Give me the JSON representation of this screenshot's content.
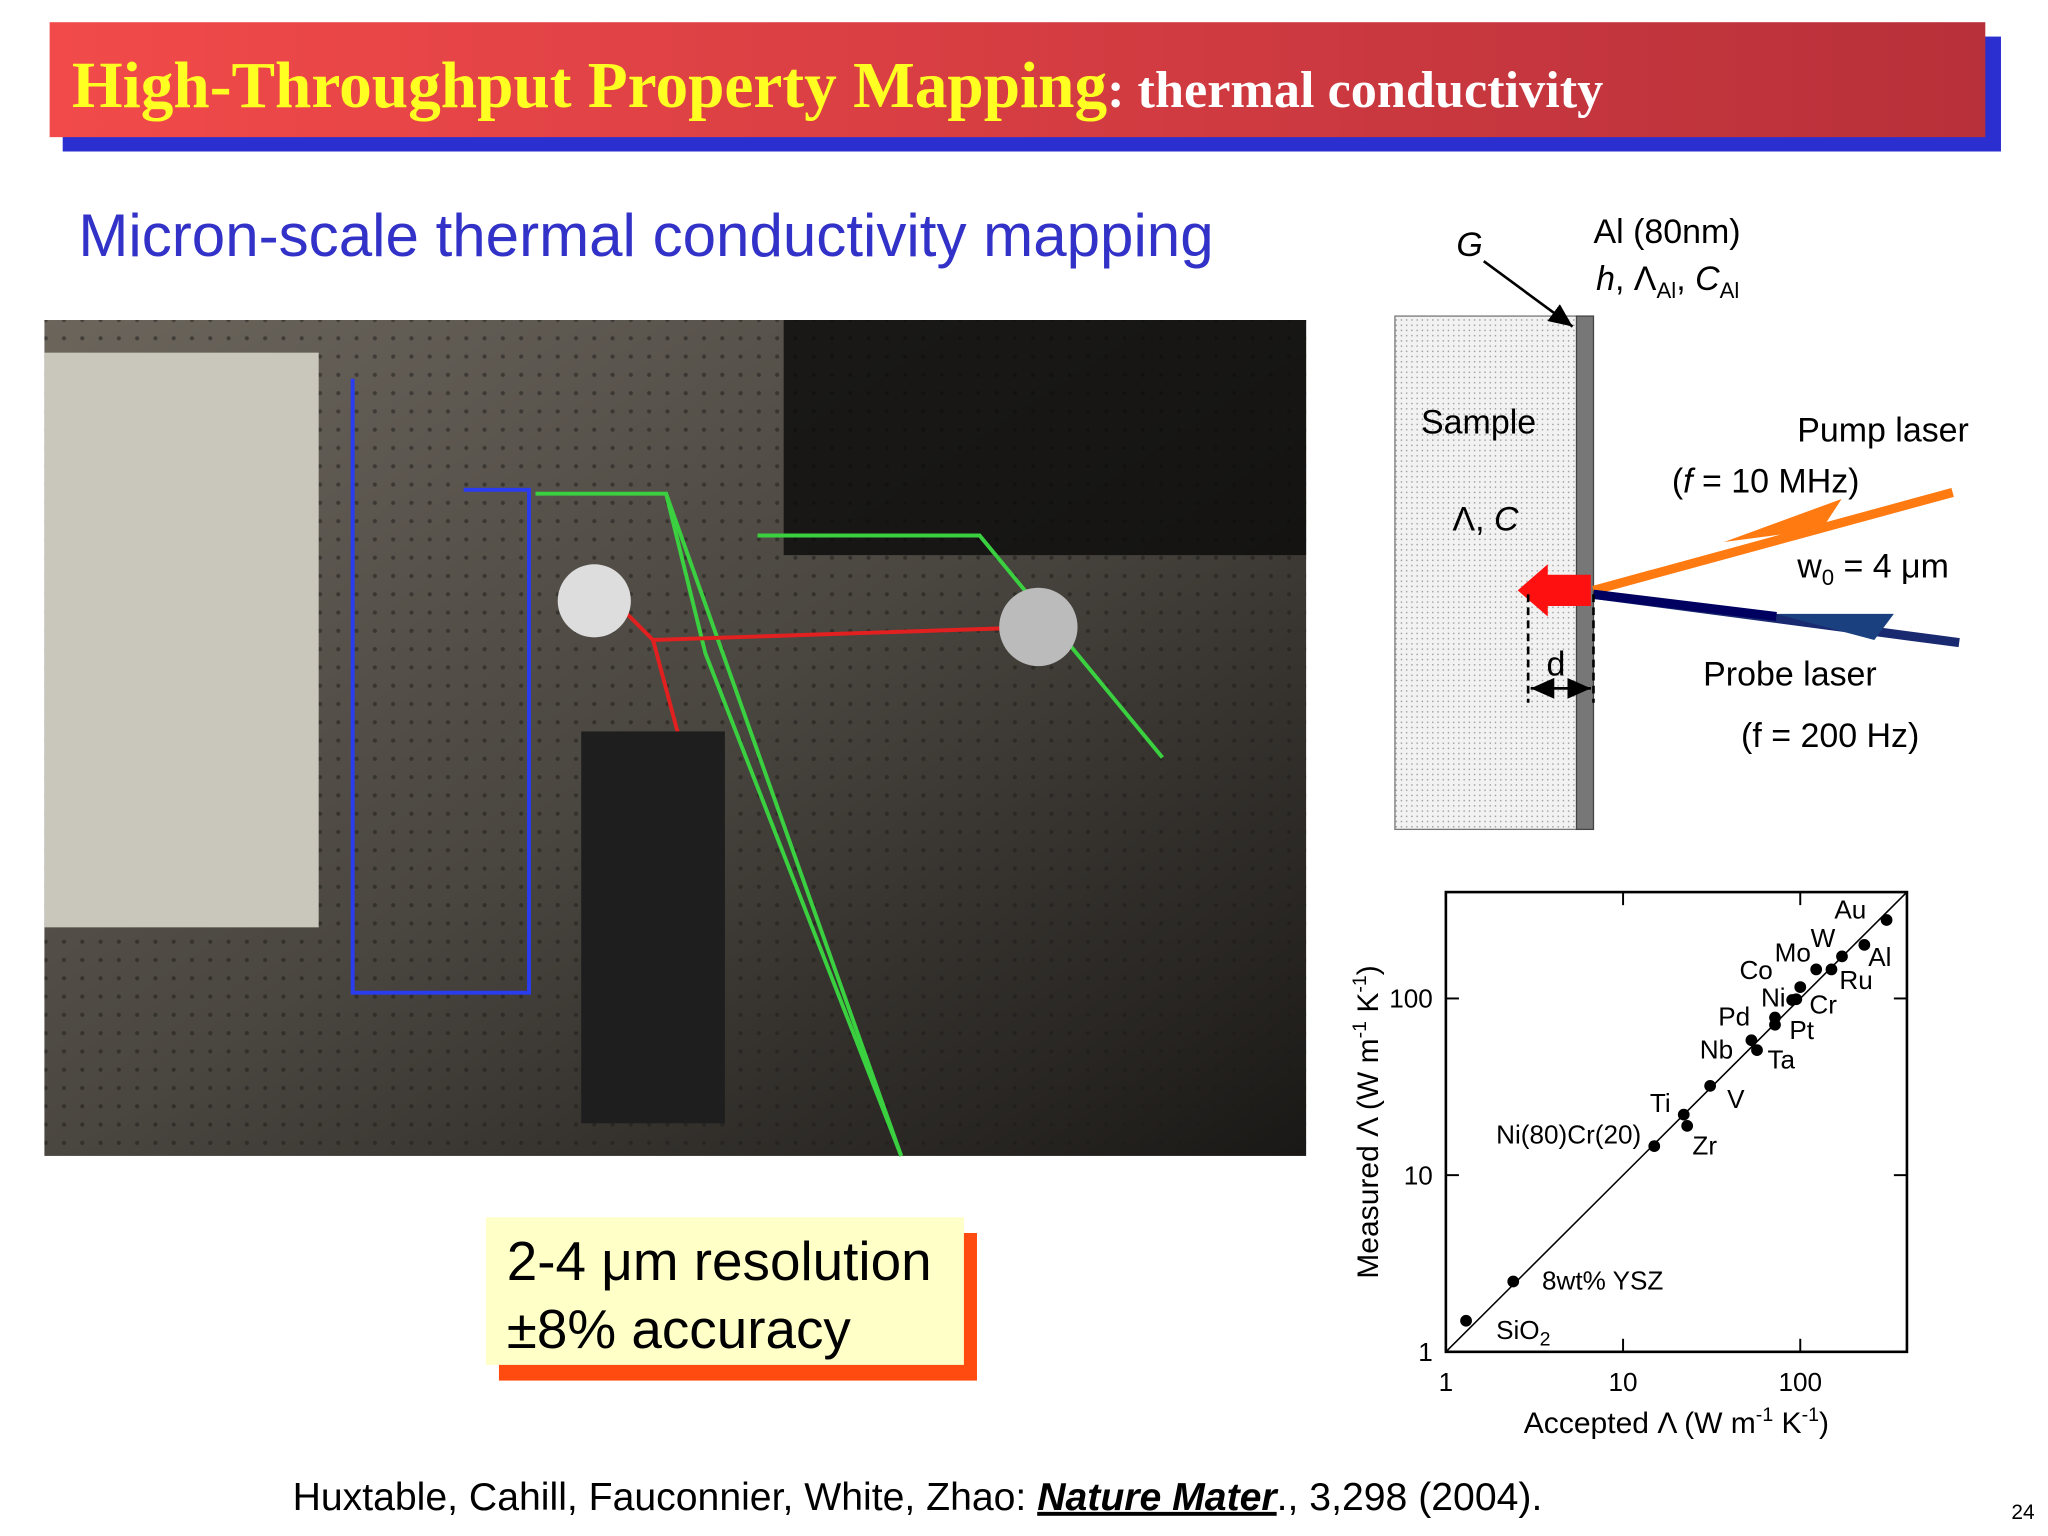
{
  "header": {
    "title": [
      "High-Throughput Property Mapping",
      ": thermal conductivity"
    ]
  },
  "subtitle": "Micron-scale thermal conductivity mapping",
  "highlight": [
    "2-4 μm resolution",
    "±8% accuracy"
  ],
  "citation": [
    "Huxtable, Cahill, Fauconnier, White, Zhao: ",
    "Nature Mater",
    ".,  3,298 (2004)."
  ],
  "page_number": "24",
  "diagram": {
    "interface": "G",
    "layer": "Al (80nm)",
    "layer_params": [
      "h",
      ", Λ",
      "Al",
      ", ",
      "C",
      "Al"
    ],
    "sample": "Sample",
    "sample_params": [
      "Λ, ",
      "C"
    ],
    "pump": "Pump laser",
    "pump_freq": [
      "(",
      "f",
      " = 10 MHz)"
    ],
    "spot": [
      "w",
      "0",
      " = 4 μm"
    ],
    "depth": "d",
    "probe": "Probe laser",
    "probe_freq": "(f = 200 Hz)"
  },
  "chart_data": {
    "type": "scatter",
    "xlabel": [
      "Accepted Λ (W m",
      "-1",
      " K",
      "-1",
      ")"
    ],
    "ylabel": [
      "Measured Λ (W m",
      "-1",
      " K",
      "-1",
      ")"
    ],
    "log_x": true,
    "log_y": true,
    "color": "#000000",
    "labels": [
      [
        "SiO",
        "2"
      ],
      [
        "8wt% YSZ"
      ],
      [
        "Ni(80)Cr(20)"
      ],
      [
        "Ti"
      ],
      [
        "Zr"
      ],
      [
        "V"
      ],
      [
        "Nb"
      ],
      [
        "Ta"
      ],
      [
        "Pd"
      ],
      [
        "Pt"
      ],
      [
        "Ni"
      ],
      [
        "Co"
      ],
      [
        "Cr"
      ],
      [
        "Mo"
      ],
      [
        "W"
      ],
      [
        "Ru"
      ],
      [
        "Al"
      ],
      [
        "Au"
      ]
    ],
    "x": [
      1.3,
      2.4,
      15,
      22,
      23,
      31,
      53,
      57,
      72,
      72,
      90,
      100,
      95,
      123,
      150,
      172,
      230,
      307
    ],
    "values": [
      1.5,
      2.5,
      14.6,
      22,
      19,
      32,
      58,
      51,
      78,
      71,
      98,
      116,
      99,
      146,
      146,
      173,
      201,
      278
    ],
    "xlim": [
      1,
      400
    ],
    "ylim": [
      1,
      400
    ],
    "xticks": [
      1,
      10,
      100
    ],
    "yticks": [
      1,
      10,
      100
    ]
  }
}
